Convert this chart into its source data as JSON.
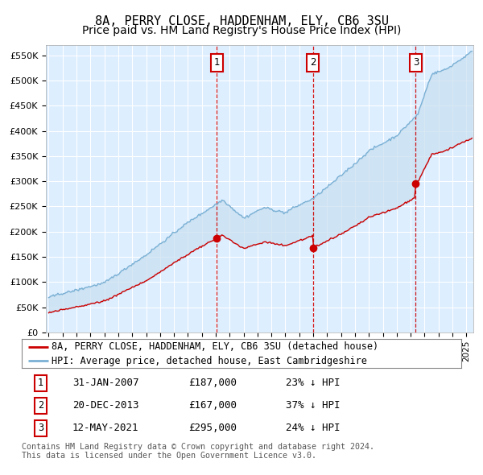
{
  "title": "8A, PERRY CLOSE, HADDENHAM, ELY, CB6 3SU",
  "subtitle": "Price paid vs. HM Land Registry's House Price Index (HPI)",
  "ylim": [
    0,
    570000
  ],
  "yticks": [
    0,
    50000,
    100000,
    150000,
    200000,
    250000,
    300000,
    350000,
    400000,
    450000,
    500000,
    550000
  ],
  "ytick_labels": [
    "£0",
    "£50K",
    "£100K",
    "£150K",
    "£200K",
    "£250K",
    "£300K",
    "£350K",
    "£400K",
    "£450K",
    "£500K",
    "£550K"
  ],
  "plot_bg": "#ddeeff",
  "red_color": "#cc0000",
  "blue_color": "#7ab0d4",
  "fill_color": "#c8dff0",
  "vline_color": "#cc0000",
  "sales": [
    {
      "date_num": 2007.08,
      "price": 187000,
      "label": "1"
    },
    {
      "date_num": 2013.97,
      "price": 167000,
      "label": "2"
    },
    {
      "date_num": 2021.36,
      "price": 295000,
      "label": "3"
    }
  ],
  "legend_entries": [
    "8A, PERRY CLOSE, HADDENHAM, ELY, CB6 3SU (detached house)",
    "HPI: Average price, detached house, East Cambridgeshire"
  ],
  "table_rows": [
    [
      "1",
      "31-JAN-2007",
      "£187,000",
      "23% ↓ HPI"
    ],
    [
      "2",
      "20-DEC-2013",
      "£167,000",
      "37% ↓ HPI"
    ],
    [
      "3",
      "12-MAY-2021",
      "£295,000",
      "24% ↓ HPI"
    ]
  ],
  "footnote": "Contains HM Land Registry data © Crown copyright and database right 2024.\nThis data is licensed under the Open Government Licence v3.0.",
  "title_fontsize": 11,
  "subtitle_fontsize": 10,
  "tick_fontsize": 8,
  "legend_fontsize": 8.5,
  "table_fontsize": 9
}
